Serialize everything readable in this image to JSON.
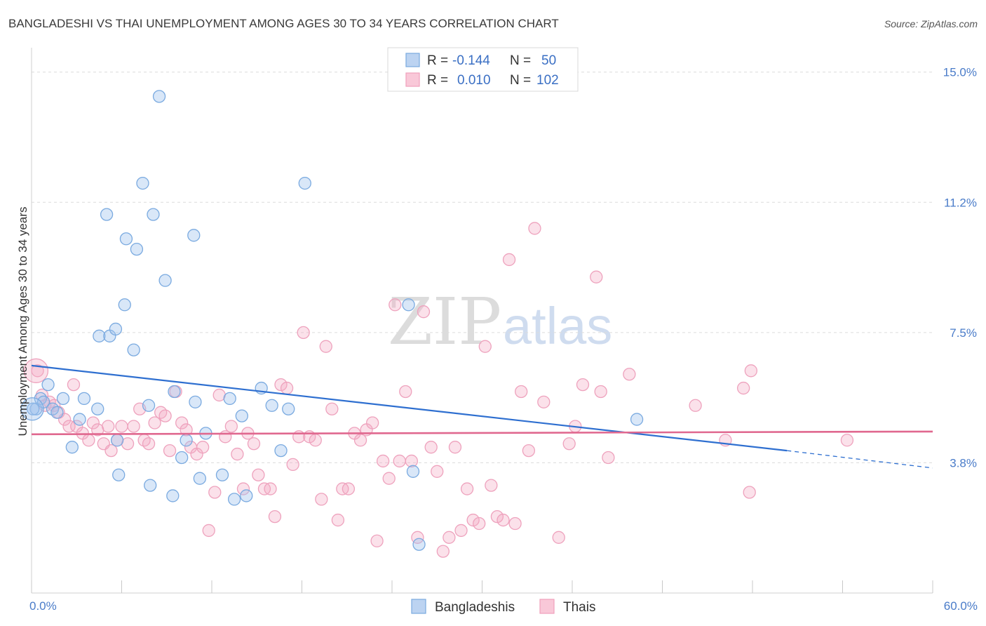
{
  "chart_data": {
    "type": "scatter",
    "title": "BANGLADESHI VS THAI UNEMPLOYMENT AMONG AGES 30 TO 34 YEARS CORRELATION CHART",
    "source": "Source: ZipAtlas.com",
    "ylabel": "Unemployment Among Ages 30 to 34 years",
    "xlim": [
      0,
      60
    ],
    "ylim": [
      0,
      15.5
    ],
    "y_ticks": [
      "15.0%",
      "11.2%",
      "7.5%",
      "3.8%"
    ],
    "x_ticks": [
      "0.0%",
      "60.0%"
    ],
    "grid": true,
    "legend_position": "top-center",
    "stats": [
      {
        "r_label": "R =",
        "r_value": "-0.144",
        "n_label": "N =",
        "n_value": "50"
      },
      {
        "r_label": "R =",
        "r_value": "0.010",
        "n_label": "N =",
        "n_value": "102"
      }
    ],
    "colors": {
      "blue": "#7aaae0",
      "blue_line": "#2e6fd0",
      "pink": "#f0a0bc",
      "pink_line": "#e0688f"
    },
    "series": [
      {
        "name": "Bangladeshis",
        "color": "#7aaae0",
        "trend": {
          "x0": 0,
          "y0": 6.55,
          "x1": 50.3,
          "y1": 4.1,
          "dash_to_x": 60,
          "dash_to_y": 3.6
        },
        "points": [
          [
            0.3,
            5.3
          ],
          [
            0.6,
            5.6
          ],
          [
            0.8,
            5.5
          ],
          [
            1.1,
            6.0
          ],
          [
            1.4,
            5.3
          ],
          [
            1.7,
            5.2
          ],
          [
            2.1,
            5.6
          ],
          [
            2.7,
            4.2
          ],
          [
            3.2,
            5.0
          ],
          [
            3.5,
            5.6
          ],
          [
            4.5,
            7.4
          ],
          [
            4.4,
            5.3
          ],
          [
            5.0,
            10.9
          ],
          [
            5.2,
            7.4
          ],
          [
            5.7,
            4.4
          ],
          [
            5.6,
            7.6
          ],
          [
            5.8,
            3.4
          ],
          [
            6.2,
            8.3
          ],
          [
            6.3,
            10.2
          ],
          [
            6.8,
            7.0
          ],
          [
            7.0,
            9.9
          ],
          [
            7.4,
            11.8
          ],
          [
            7.8,
            5.4
          ],
          [
            7.9,
            3.1
          ],
          [
            8.1,
            10.9
          ],
          [
            8.5,
            14.3
          ],
          [
            8.9,
            9.0
          ],
          [
            9.4,
            2.8
          ],
          [
            9.5,
            5.8
          ],
          [
            10.0,
            3.9
          ],
          [
            10.3,
            4.4
          ],
          [
            10.8,
            10.3
          ],
          [
            10.9,
            5.5
          ],
          [
            11.2,
            3.3
          ],
          [
            11.6,
            4.6
          ],
          [
            12.7,
            3.4
          ],
          [
            13.2,
            5.6
          ],
          [
            13.5,
            2.7
          ],
          [
            14.0,
            5.1
          ],
          [
            14.3,
            2.8
          ],
          [
            15.3,
            5.9
          ],
          [
            16.0,
            5.4
          ],
          [
            16.6,
            4.1
          ],
          [
            17.1,
            5.3
          ],
          [
            18.2,
            11.8
          ],
          [
            25.1,
            8.3
          ],
          [
            25.4,
            3.5
          ],
          [
            25.8,
            1.4
          ],
          [
            40.3,
            5.0
          ],
          [
            0.1,
            5.3
          ]
        ]
      },
      {
        "name": "Thais",
        "color": "#f0a0bc",
        "trend": {
          "x0": 0,
          "y0": 4.57,
          "x1": 60,
          "y1": 4.65
        },
        "points": [
          [
            0.4,
            6.4
          ],
          [
            0.7,
            5.7
          ],
          [
            0.9,
            5.4
          ],
          [
            1.2,
            5.5
          ],
          [
            1.5,
            5.4
          ],
          [
            1.8,
            5.2
          ],
          [
            2.2,
            5.0
          ],
          [
            2.5,
            4.8
          ],
          [
            2.8,
            6.0
          ],
          [
            3.0,
            4.8
          ],
          [
            3.4,
            4.6
          ],
          [
            3.8,
            4.4
          ],
          [
            4.1,
            4.9
          ],
          [
            4.4,
            4.7
          ],
          [
            4.8,
            4.3
          ],
          [
            5.1,
            4.8
          ],
          [
            5.3,
            4.1
          ],
          [
            5.7,
            4.4
          ],
          [
            6.0,
            4.8
          ],
          [
            6.4,
            4.3
          ],
          [
            6.8,
            4.8
          ],
          [
            7.2,
            5.3
          ],
          [
            7.5,
            4.4
          ],
          [
            7.8,
            4.3
          ],
          [
            8.2,
            4.9
          ],
          [
            8.6,
            5.2
          ],
          [
            8.9,
            5.1
          ],
          [
            9.2,
            4.1
          ],
          [
            9.6,
            5.8
          ],
          [
            10.0,
            4.9
          ],
          [
            10.3,
            4.7
          ],
          [
            10.6,
            4.2
          ],
          [
            11.0,
            4.0
          ],
          [
            11.4,
            4.2
          ],
          [
            11.8,
            1.8
          ],
          [
            12.2,
            2.9
          ],
          [
            12.5,
            5.7
          ],
          [
            12.9,
            4.5
          ],
          [
            13.3,
            4.8
          ],
          [
            13.7,
            4.0
          ],
          [
            14.1,
            3.0
          ],
          [
            14.4,
            4.6
          ],
          [
            14.8,
            4.3
          ],
          [
            15.1,
            3.4
          ],
          [
            15.5,
            3.0
          ],
          [
            15.9,
            3.0
          ],
          [
            16.2,
            2.2
          ],
          [
            16.6,
            6.0
          ],
          [
            17.0,
            5.9
          ],
          [
            17.4,
            3.7
          ],
          [
            17.8,
            4.5
          ],
          [
            18.1,
            7.5
          ],
          [
            18.5,
            4.5
          ],
          [
            18.9,
            4.4
          ],
          [
            19.3,
            2.7
          ],
          [
            19.6,
            7.1
          ],
          [
            20.0,
            5.3
          ],
          [
            20.4,
            2.1
          ],
          [
            20.7,
            3.0
          ],
          [
            21.1,
            3.0
          ],
          [
            21.5,
            4.6
          ],
          [
            21.9,
            4.4
          ],
          [
            22.3,
            4.7
          ],
          [
            22.7,
            4.9
          ],
          [
            23.0,
            1.5
          ],
          [
            23.4,
            3.8
          ],
          [
            23.8,
            3.3
          ],
          [
            24.2,
            8.3
          ],
          [
            24.5,
            3.8
          ],
          [
            24.9,
            5.8
          ],
          [
            25.3,
            3.8
          ],
          [
            25.7,
            1.6
          ],
          [
            26.1,
            8.1
          ],
          [
            26.6,
            4.2
          ],
          [
            27.0,
            3.5
          ],
          [
            27.4,
            1.2
          ],
          [
            27.8,
            1.6
          ],
          [
            28.2,
            4.2
          ],
          [
            28.6,
            1.8
          ],
          [
            29.0,
            3.0
          ],
          [
            29.4,
            2.1
          ],
          [
            29.8,
            2.0
          ],
          [
            30.2,
            7.1
          ],
          [
            30.6,
            3.1
          ],
          [
            31.0,
            2.2
          ],
          [
            31.4,
            2.1
          ],
          [
            31.8,
            9.6
          ],
          [
            32.2,
            2.0
          ],
          [
            32.6,
            5.8
          ],
          [
            33.1,
            4.1
          ],
          [
            33.5,
            10.5
          ],
          [
            34.1,
            5.5
          ],
          [
            35.1,
            1.6
          ],
          [
            35.8,
            4.3
          ],
          [
            36.2,
            4.8
          ],
          [
            36.7,
            6.0
          ],
          [
            37.6,
            9.1
          ],
          [
            37.9,
            5.8
          ],
          [
            38.4,
            3.9
          ],
          [
            39.8,
            6.3
          ],
          [
            44.2,
            5.4
          ],
          [
            46.2,
            4.4
          ]
        ]
      }
    ],
    "extra_thai_points": [
      [
        47.4,
        5.9
      ],
      [
        47.8,
        2.9
      ],
      [
        47.9,
        6.4
      ],
      [
        54.3,
        4.4
      ]
    ]
  },
  "legend": {
    "bottom": [
      {
        "label": "Bangladeshis"
      },
      {
        "label": "Thais"
      }
    ]
  }
}
